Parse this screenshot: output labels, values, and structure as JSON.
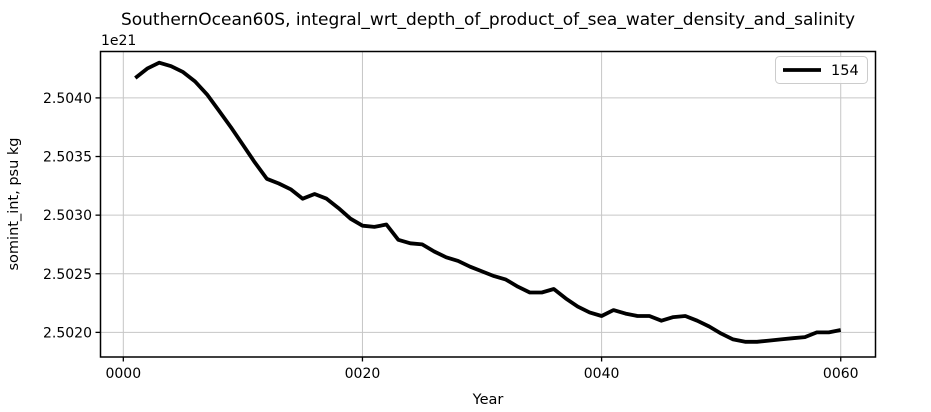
{
  "figure": {
    "background": "#ffffff",
    "text_color": "#000000"
  },
  "axes": {
    "grid": true,
    "grid_color": "#c6c6c6",
    "spine_color": "#000000",
    "tick_color": "#000000"
  },
  "legend": {
    "position": "upper right",
    "border_color": "#cccccc",
    "entries": [
      {
        "label": "154",
        "color": "#000000"
      }
    ]
  },
  "chart_data": {
    "type": "line",
    "title": "SouthernOcean60S, integral_wrt_depth_of_product_of_sea_water_density_and_salinity",
    "xlabel": "Year",
    "ylabel": "somint_int, psu kg",
    "y_offset_label": "1e21",
    "unit_scale": "1e21",
    "xlim": [
      -1.95,
      62.95
    ],
    "ylim": [
      2.50179,
      2.5044
    ],
    "x_ticks": [
      0,
      20,
      40,
      60
    ],
    "x_tick_labels": [
      "0000",
      "0020",
      "0040",
      "0060"
    ],
    "y_ticks": [
      2.502,
      2.5025,
      2.503,
      2.5035,
      2.504
    ],
    "y_tick_labels": [
      "2.5020",
      "2.5025",
      "2.5030",
      "2.5035",
      "2.5040"
    ],
    "grid": true,
    "legend_position": "upper right",
    "series": [
      {
        "name": "154",
        "color": "#000000",
        "linewidth": 3.8,
        "x": [
          1,
          2,
          3,
          4,
          5,
          6,
          7,
          8,
          9,
          10,
          11,
          12,
          13,
          14,
          15,
          16,
          17,
          18,
          19,
          20,
          21,
          22,
          23,
          24,
          25,
          26,
          27,
          28,
          29,
          30,
          31,
          32,
          33,
          34,
          35,
          36,
          37,
          38,
          39,
          40,
          41,
          42,
          43,
          44,
          45,
          46,
          47,
          48,
          49,
          50,
          51,
          52,
          53,
          54,
          55,
          56,
          57,
          58,
          59,
          60
        ],
        "y": [
          2.50417,
          2.50425,
          2.5043,
          2.50427,
          2.50422,
          2.50414,
          2.50403,
          2.50389,
          2.50375,
          2.5036,
          2.50345,
          2.50331,
          2.50327,
          2.50322,
          2.50314,
          2.50318,
          2.50314,
          2.50306,
          2.50297,
          2.50291,
          2.5029,
          2.50292,
          2.50279,
          2.50276,
          2.50275,
          2.50269,
          2.50264,
          2.50261,
          2.50256,
          2.50252,
          2.50248,
          2.50245,
          2.50239,
          2.50234,
          2.50234,
          2.50237,
          2.50229,
          2.50222,
          2.50217,
          2.50214,
          2.50219,
          2.50216,
          2.50214,
          2.50214,
          2.5021,
          2.50213,
          2.50214,
          2.5021,
          2.50205,
          2.50199,
          2.50194,
          2.50192,
          2.50192,
          2.50193,
          2.50194,
          2.50195,
          2.50196,
          2.502,
          2.502,
          2.50202
        ]
      }
    ]
  }
}
